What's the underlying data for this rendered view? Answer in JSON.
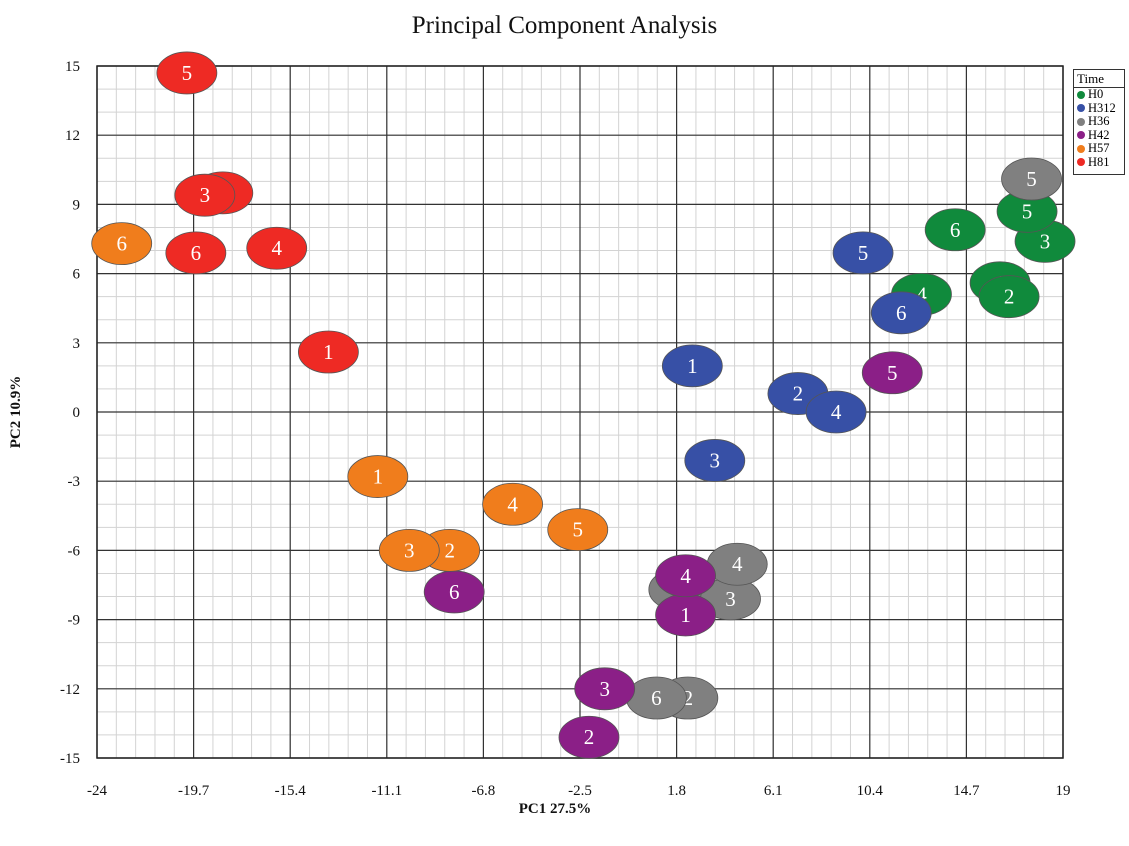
{
  "chart_data": {
    "type": "scatter",
    "title": "Principal Component Analysis",
    "xlabel": "PC1   27.5%",
    "ylabel": "PC2   10.9%",
    "xlim": [
      -24,
      19
    ],
    "ylim": [
      -15,
      15
    ],
    "xticks": [
      "-24",
      "-19.7",
      "-15.4",
      "-11.1",
      "-6.8",
      "-2.5",
      "1.8",
      "6.1",
      "10.4",
      "14.7",
      "19"
    ],
    "yticks": [
      "15",
      "12",
      "9",
      "6",
      "3",
      "0",
      "-3",
      "-6",
      "-9",
      "-12",
      "-15"
    ],
    "grid": true,
    "legend": {
      "title": "Time",
      "placement": "right"
    },
    "series": [
      {
        "name": "H0",
        "color": "#108a3c",
        "points": [
          {
            "label": "1",
            "x": 16.2,
            "y": 5.6
          },
          {
            "label": "2",
            "x": 16.6,
            "y": 5.0
          },
          {
            "label": "3",
            "x": 18.2,
            "y": 7.4
          },
          {
            "label": "4",
            "x": 12.7,
            "y": 5.1
          },
          {
            "label": "5",
            "x": 17.4,
            "y": 8.7
          },
          {
            "label": "6",
            "x": 14.2,
            "y": 7.9
          }
        ]
      },
      {
        "name": "H312",
        "color": "#3750a6",
        "points": [
          {
            "label": "1",
            "x": 2.5,
            "y": 2.0
          },
          {
            "label": "2",
            "x": 7.2,
            "y": 0.8
          },
          {
            "label": "3",
            "x": 3.5,
            "y": -2.1
          },
          {
            "label": "4",
            "x": 8.9,
            "y": 0.0
          },
          {
            "label": "5",
            "x": 10.1,
            "y": 6.9
          },
          {
            "label": "6",
            "x": 11.8,
            "y": 4.3
          }
        ]
      },
      {
        "name": "H36",
        "color": "#808080",
        "points": [
          {
            "label": "1",
            "x": 1.9,
            "y": -7.7
          },
          {
            "label": "2",
            "x": 2.3,
            "y": -12.4
          },
          {
            "label": "3",
            "x": 4.2,
            "y": -8.1
          },
          {
            "label": "4",
            "x": 4.5,
            "y": -6.6
          },
          {
            "label": "5",
            "x": 17.6,
            "y": 10.1
          },
          {
            "label": "6",
            "x": 0.9,
            "y": -12.4
          }
        ]
      },
      {
        "name": "H42",
        "color": "#8b1f87",
        "points": [
          {
            "label": "1",
            "x": 2.2,
            "y": -8.8
          },
          {
            "label": "2",
            "x": -2.1,
            "y": -14.1
          },
          {
            "label": "3",
            "x": -1.4,
            "y": -12.0
          },
          {
            "label": "4",
            "x": 2.2,
            "y": -7.1
          },
          {
            "label": "5",
            "x": 11.4,
            "y": 1.7
          },
          {
            "label": "6",
            "x": -8.1,
            "y": -7.8
          }
        ]
      },
      {
        "name": "H57",
        "color": "#f07d1c",
        "points": [
          {
            "label": "1",
            "x": -11.5,
            "y": -2.8
          },
          {
            "label": "2",
            "x": -8.3,
            "y": -6.0
          },
          {
            "label": "3",
            "x": -10.1,
            "y": -6.0
          },
          {
            "label": "4",
            "x": -5.5,
            "y": -4.0
          },
          {
            "label": "5",
            "x": -2.6,
            "y": -5.1
          },
          {
            "label": "6",
            "x": -22.9,
            "y": 7.3
          }
        ]
      },
      {
        "name": "H81",
        "color": "#ee2a24",
        "points": [
          {
            "label": "1",
            "x": -13.7,
            "y": 2.6
          },
          {
            "label": "2",
            "x": -18.4,
            "y": 9.5
          },
          {
            "label": "3",
            "x": -19.2,
            "y": 9.4
          },
          {
            "label": "4",
            "x": -16.0,
            "y": 7.1
          },
          {
            "label": "5",
            "x": -20.0,
            "y": 14.7
          },
          {
            "label": "6",
            "x": -19.6,
            "y": 6.9
          }
        ]
      }
    ]
  }
}
